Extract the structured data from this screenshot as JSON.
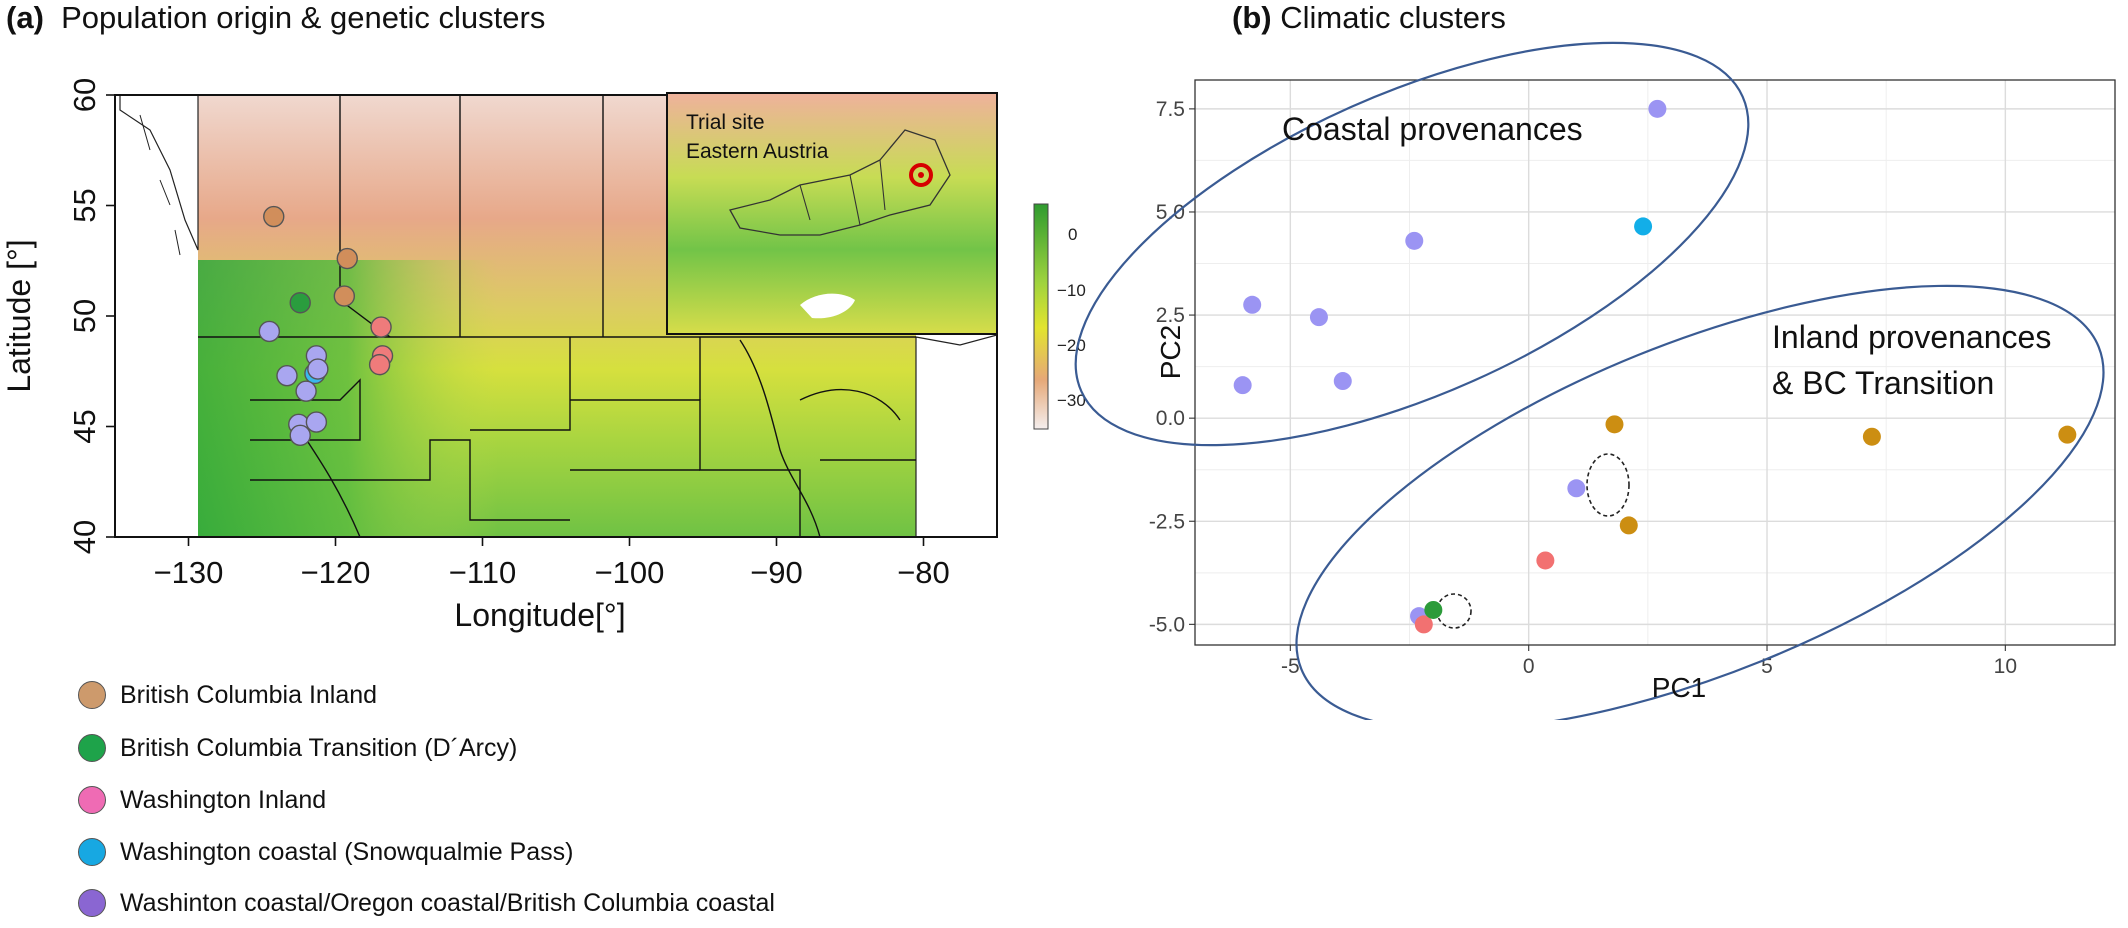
{
  "panel_a": {
    "label": "(a)",
    "title": "Population origin & genetic clusters",
    "inset_text_1": "Trial site",
    "inset_text_2": "Eastern Austria",
    "colorbar_ticks": [
      "0",
      "−10",
      "−20",
      "−30"
    ]
  },
  "panel_b": {
    "label": "(b)",
    "title": "Climatic clusters",
    "ellipse_label_coastal": "Coastal provenances",
    "ellipse_label_inland_1": "Inland provenances",
    "ellipse_label_inland_2": "& BC Transition"
  },
  "legend": [
    {
      "label": "British Columbia Inland",
      "color": "#cd9a6c"
    },
    {
      "label": "British Columbia Transition (D´Arcy)",
      "color": "#1ea34a"
    },
    {
      "label": "Washington Inland",
      "color": "#ef6bb4"
    },
    {
      "label": "Washington coastal (Snowqualmie Pass)",
      "color": "#17a8e2"
    },
    {
      "label": "Washinton coastal/Oregon coastal/British Columbia coastal",
      "color": "#8a66d2"
    }
  ],
  "chart_data": [
    {
      "type": "scatter",
      "title": "",
      "xlabel": "Longitude[°]",
      "ylabel": "Latitude [°]",
      "xlim": [
        -135,
        -75
      ],
      "ylim": [
        40,
        60
      ],
      "x_ticks": [
        -130,
        -120,
        -110,
        -100,
        -90,
        -80
      ],
      "x_tick_labels": [
        "−130",
        "−120",
        "−110",
        "−100",
        "−90",
        "−80"
      ],
      "y_ticks": [
        40,
        45,
        50,
        55,
        60
      ],
      "series": [
        {
          "color": "#d18e5b",
          "points": [
            [
              -124.2,
              54.5
            ],
            [
              -119.2,
              52.6
            ],
            [
              -119.4,
              50.9
            ]
          ]
        },
        {
          "color": "#2a9d3e",
          "points": [
            [
              -122.4,
              50.6
            ]
          ]
        },
        {
          "color": "#ef7b7b",
          "points": [
            [
              -116.9,
              49.5
            ],
            [
              -116.8,
              48.2
            ],
            [
              -117.0,
              47.8
            ]
          ]
        },
        {
          "color": "#3ab7ec",
          "points": [
            [
              -121.4,
              47.4
            ]
          ]
        },
        {
          "color": "#a9a6f0",
          "points": [
            [
              -124.5,
              49.3
            ],
            [
              -121.3,
              48.2
            ],
            [
              -123.3,
              47.3
            ],
            [
              -121.2,
              47.6
            ],
            [
              -122.0,
              46.6
            ],
            [
              -122.5,
              45.1
            ],
            [
              -121.3,
              45.2
            ],
            [
              -122.4,
              44.6
            ]
          ]
        }
      ]
    },
    {
      "type": "scatter",
      "title": "",
      "xlabel": "PC1",
      "ylabel": "PC2",
      "xlim": [
        -7,
        12.3
      ],
      "ylim": [
        -5.5,
        8.2
      ],
      "x_ticks": [
        -5,
        0,
        5,
        10
      ],
      "x_tick_labels": [
        "-5",
        "0",
        "5",
        "10"
      ],
      "y_ticks": [
        -5.0,
        -2.5,
        0.0,
        2.5,
        5.0,
        7.5
      ],
      "y_tick_labels": [
        "-5.0",
        "-2.5",
        "0.0",
        "2.5",
        "5.0",
        "7.5"
      ],
      "grid": true,
      "series": [
        {
          "color": "#9b94f3",
          "points": [
            [
              -6.0,
              0.8
            ],
            [
              -5.8,
              2.75
            ],
            [
              -4.4,
              2.45
            ],
            [
              -3.9,
              0.9
            ],
            [
              -2.4,
              4.3
            ],
            [
              2.7,
              7.5
            ],
            [
              1.0,
              -1.7
            ],
            [
              -2.3,
              -4.8
            ]
          ]
        },
        {
          "color": "#12aee8",
          "points": [
            [
              2.4,
              4.65
            ]
          ]
        },
        {
          "color": "#cc8e12",
          "points": [
            [
              1.8,
              -0.15
            ],
            [
              7.2,
              -0.45
            ],
            [
              11.3,
              -0.4
            ],
            [
              2.1,
              -2.6
            ]
          ]
        },
        {
          "color": "#f27171",
          "points": [
            [
              0.35,
              -3.45
            ],
            [
              -2.2,
              -5.0
            ]
          ]
        },
        {
          "color": "#2c9b3a",
          "points": [
            [
              -2.0,
              -4.65
            ]
          ]
        }
      ]
    }
  ]
}
